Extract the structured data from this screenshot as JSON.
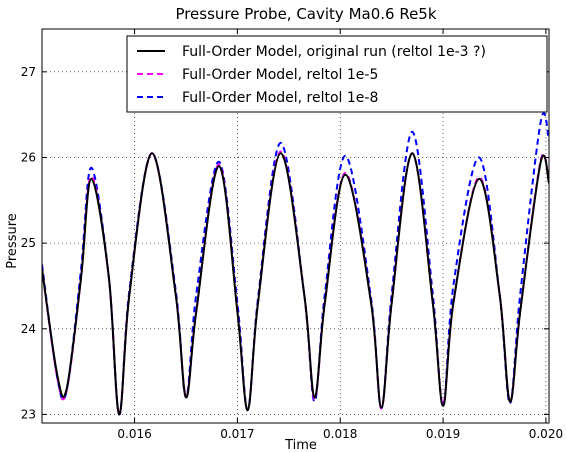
{
  "chart_data": {
    "type": "line",
    "title": "Pressure Probe, Cavity Ma0.6 Re5k",
    "xlabel": "Time",
    "ylabel": "Pressure",
    "xlim": [
      0.0151,
      0.02003
    ],
    "ylim": [
      22.9,
      27.5
    ],
    "xticks": [
      0.016,
      0.017,
      0.018,
      0.019,
      0.02
    ],
    "xtick_labels": [
      "0.016",
      "0.017",
      "0.018",
      "0.019",
      "0.020"
    ],
    "yticks": [
      23,
      24,
      25,
      26,
      27
    ],
    "ytick_labels": [
      "23",
      "24",
      "25",
      "26",
      "27"
    ],
    "grid": true,
    "legend_position": "top-right",
    "series": [
      {
        "name": "Full-Order Model, original run (reltol 1e-3 ?)",
        "color": "#000000",
        "style": "solid",
        "x": [
          0.0151,
          0.01525,
          0.01534,
          0.01548,
          0.01558,
          0.01575,
          0.01585,
          0.01595,
          0.01617,
          0.0164,
          0.0165,
          0.0166,
          0.01682,
          0.017,
          0.0171,
          0.0172,
          0.01742,
          0.01765,
          0.01775,
          0.01785,
          0.01805,
          0.0183,
          0.0184,
          0.0185,
          0.0187,
          0.0189,
          0.019,
          0.0191,
          0.01935,
          0.01955,
          0.01965,
          0.01975,
          0.01995,
          0.02003
        ],
        "y": [
          24.7,
          23.45,
          23.3,
          24.6,
          25.75,
          24.6,
          23.0,
          24.4,
          26.05,
          24.4,
          23.2,
          24.2,
          25.9,
          24.2,
          23.05,
          24.3,
          26.05,
          24.4,
          23.2,
          24.3,
          25.8,
          24.3,
          23.08,
          24.3,
          26.05,
          24.3,
          23.1,
          24.3,
          25.75,
          24.4,
          23.15,
          24.2,
          25.95,
          25.7
        ]
      },
      {
        "name": "Full-Order Model, reltol 1e-5",
        "color": "#ff00ff",
        "style": "dashed",
        "x": [
          0.0151,
          0.01525,
          0.01534,
          0.01548,
          0.01558,
          0.01575,
          0.01585,
          0.01595,
          0.01617,
          0.0164,
          0.0165,
          0.0166,
          0.01682,
          0.017,
          0.0171,
          0.0172,
          0.01742,
          0.01765,
          0.01775,
          0.01785,
          0.01805,
          0.0183,
          0.0184,
          0.0185,
          0.0187,
          0.0189,
          0.019,
          0.0191,
          0.01935,
          0.01955,
          0.01965,
          0.01975,
          0.01995,
          0.02003
        ],
        "y": [
          24.7,
          23.42,
          23.28,
          24.6,
          25.78,
          24.6,
          23.0,
          24.4,
          26.05,
          24.4,
          23.22,
          24.2,
          25.92,
          24.2,
          23.05,
          24.3,
          26.07,
          24.4,
          23.18,
          24.3,
          25.82,
          24.3,
          23.07,
          24.3,
          26.05,
          24.3,
          23.12,
          24.3,
          25.77,
          24.4,
          23.15,
          24.2,
          25.97,
          25.7
        ]
      },
      {
        "name": "Full-Order Model, reltol 1e-8",
        "color": "#0000ff",
        "style": "dashed",
        "x": [
          0.0151,
          0.01525,
          0.01534,
          0.01548,
          0.01558,
          0.01575,
          0.01585,
          0.01595,
          0.01617,
          0.0164,
          0.0165,
          0.0166,
          0.01682,
          0.017,
          0.0171,
          0.0172,
          0.01742,
          0.01765,
          0.01775,
          0.01785,
          0.01805,
          0.0183,
          0.0184,
          0.0185,
          0.0187,
          0.0189,
          0.019,
          0.0191,
          0.01935,
          0.01955,
          0.01965,
          0.01975,
          0.01995,
          0.02003
        ],
        "y": [
          24.75,
          23.42,
          23.28,
          24.7,
          25.88,
          24.6,
          23.0,
          24.45,
          26.05,
          24.45,
          23.2,
          24.4,
          25.95,
          24.3,
          23.05,
          24.35,
          26.17,
          24.4,
          23.15,
          24.4,
          26.02,
          24.35,
          23.07,
          24.4,
          26.3,
          24.4,
          23.1,
          24.5,
          26.0,
          24.4,
          23.13,
          24.4,
          26.42,
          26.2
        ]
      }
    ]
  }
}
